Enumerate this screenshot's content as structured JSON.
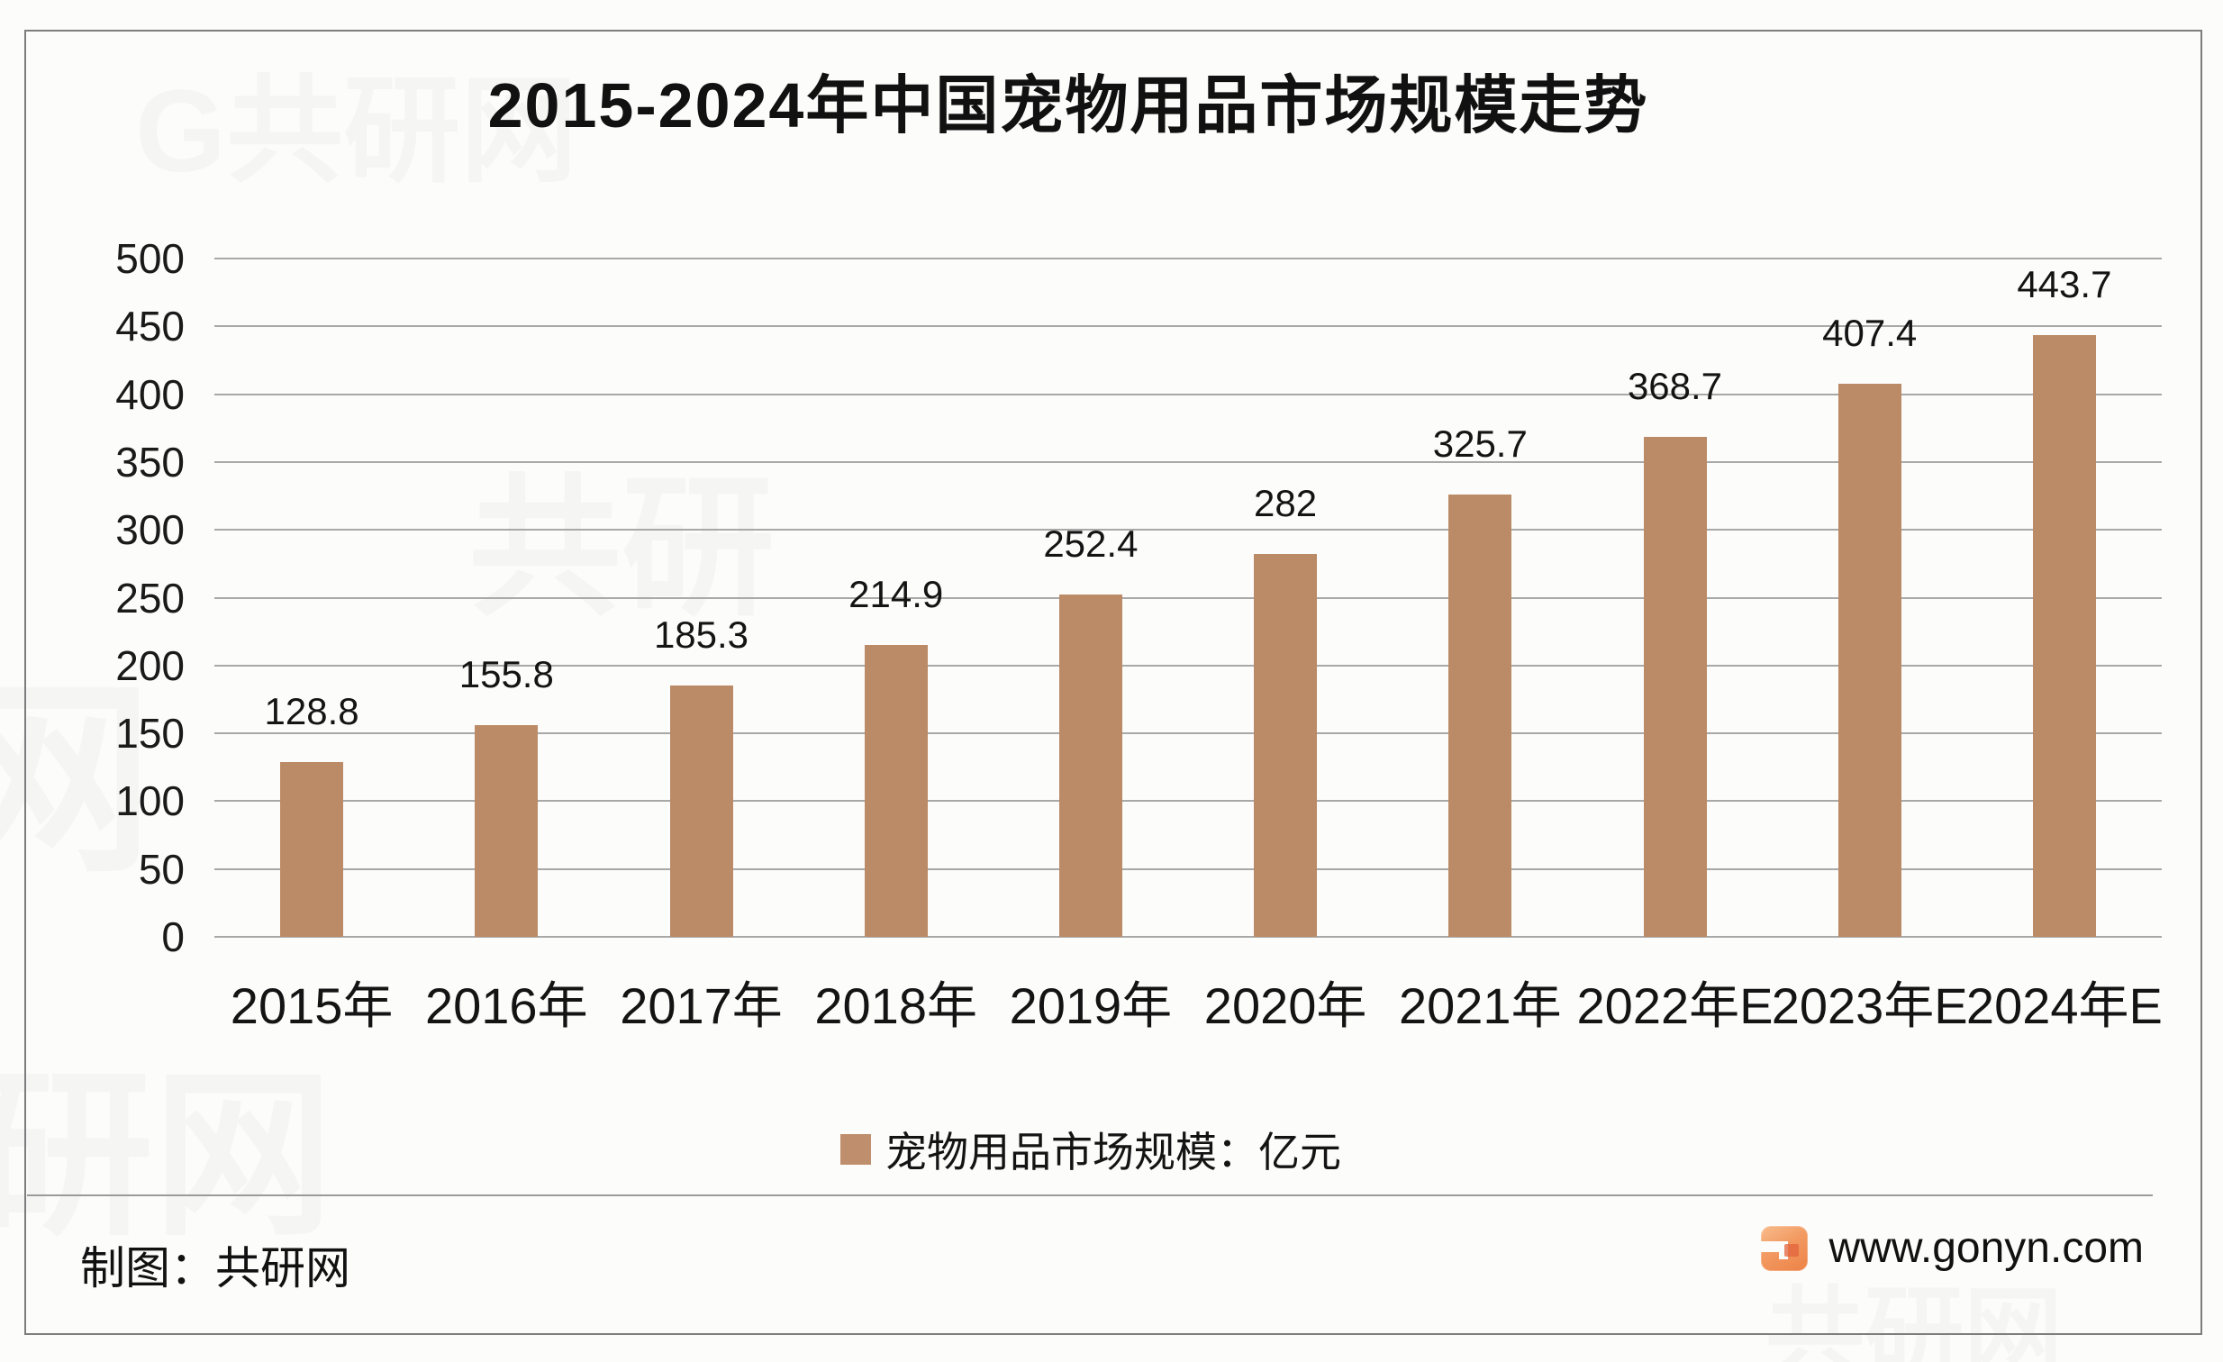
{
  "title": "2015-2024年中国宠物用品市场规模走势",
  "chart_data": {
    "type": "bar",
    "title": "2015-2024年中国宠物用品市场规模走势",
    "categories": [
      "2015年",
      "2016年",
      "2017年",
      "2018年",
      "2019年",
      "2020年",
      "2021年",
      "2022年E",
      "2023年E",
      "2024年E"
    ],
    "values": [
      128.8,
      155.8,
      185.3,
      214.9,
      252.4,
      282,
      325.7,
      368.7,
      407.4,
      443.7
    ],
    "value_labels": [
      "128.8",
      "155.8",
      "185.3",
      "214.9",
      "252.4",
      "282",
      "325.7",
      "368.7",
      "407.4",
      "443.7"
    ],
    "xlabel": "",
    "ylabel": "",
    "ylim": [
      0,
      500
    ],
    "ytick_step": 50,
    "grid": true,
    "bar_color": "#bb8a66",
    "legend": {
      "label": "宠物用品市场规模：亿元",
      "position": "bottom",
      "swatch_color": "#bf8f6d"
    }
  },
  "footer": {
    "credit": "制图：共研网",
    "website": "www.gonyn.com",
    "logo_letter": "G"
  },
  "colors": {
    "bar": "#bb8a66",
    "grid": "#a8a8a8",
    "text": "#141414",
    "frame": "#7d7d7d",
    "logo_orange": "#ef8a4d"
  },
  "watermarks": {
    "wm1": "G共研网",
    "wm2": "共研",
    "wm3": "网",
    "wm4": "研网",
    "wm5": "共研网"
  }
}
